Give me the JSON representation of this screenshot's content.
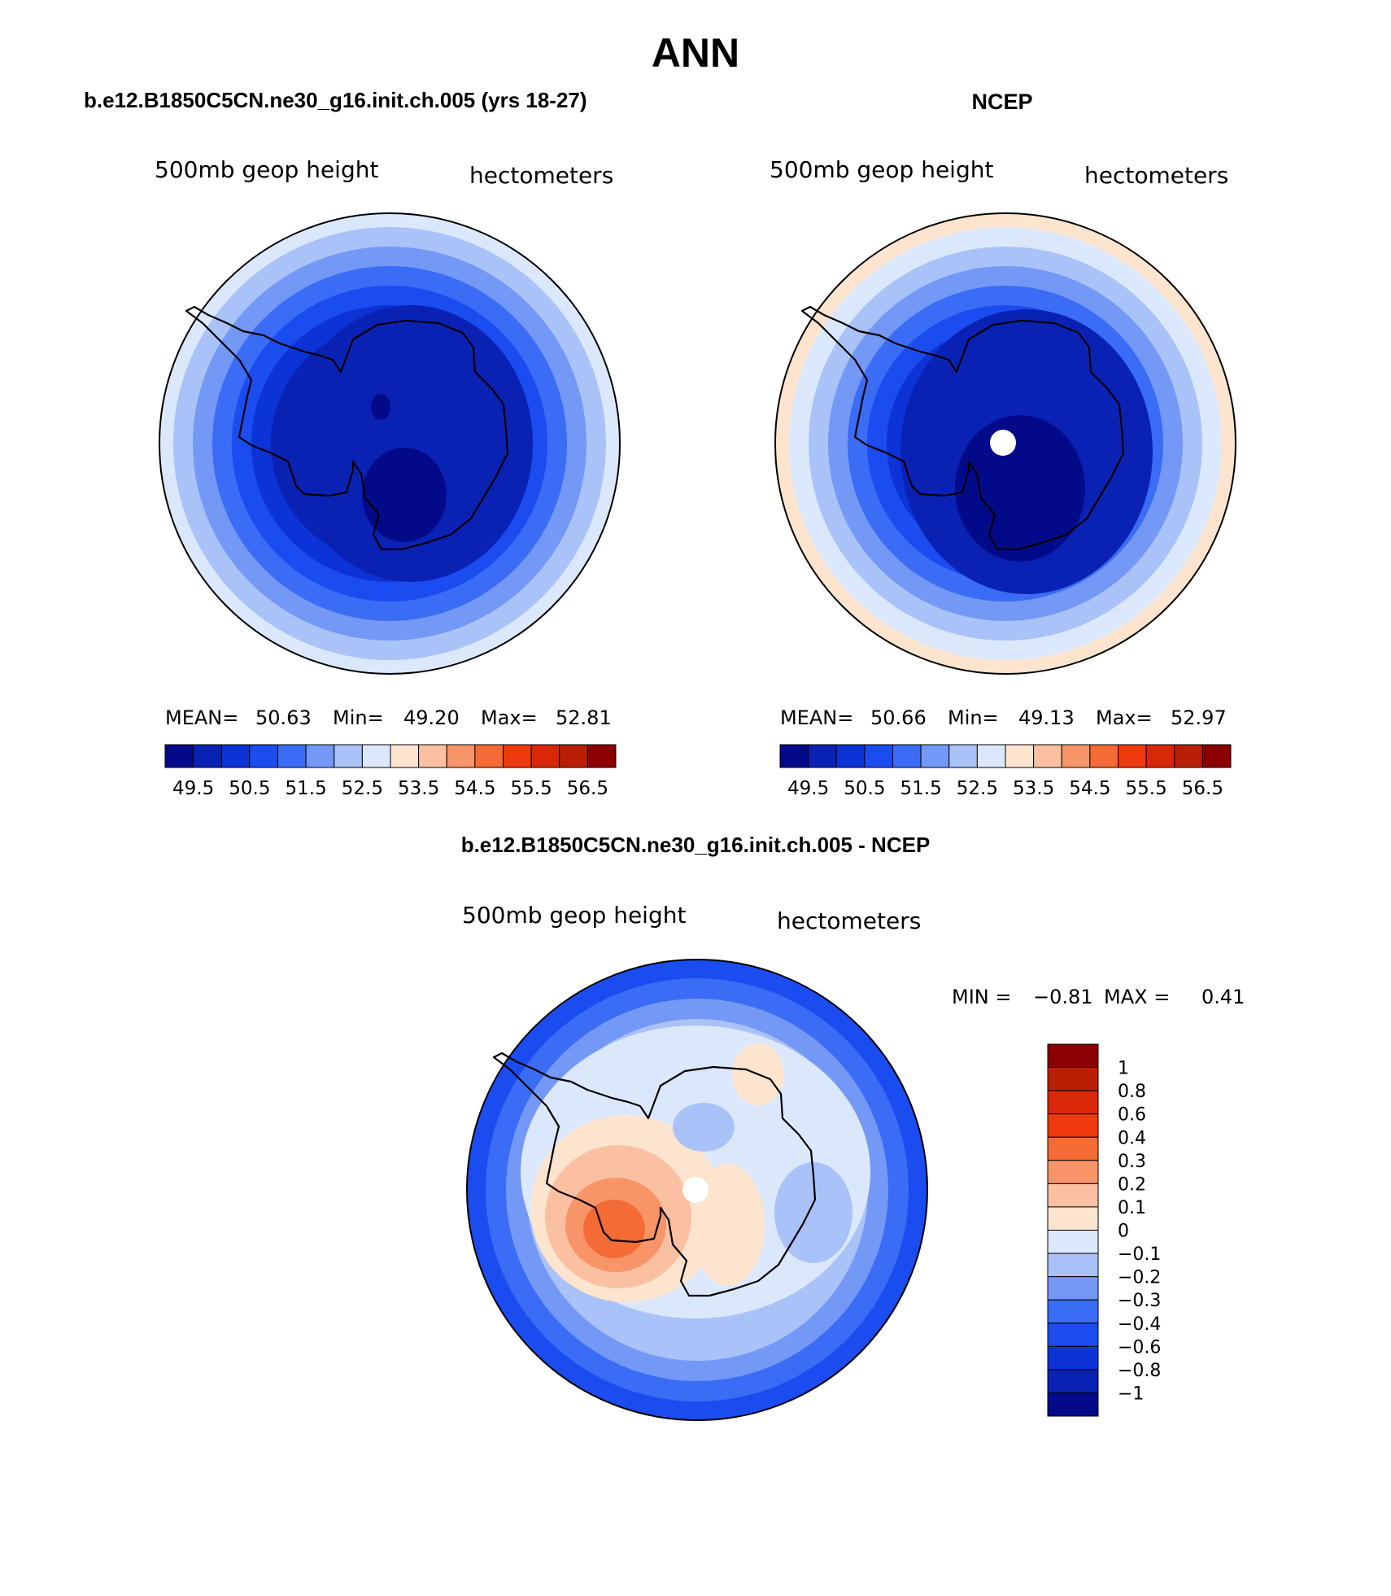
{
  "title": "ANN",
  "panels": [
    {
      "id": "model",
      "header": "b.e12.B1850C5CN.ne30_g16.init.ch.005 (yrs 18-27)",
      "left_label": "500mb geop height",
      "right_label": "hectometers",
      "stats": {
        "mean_label": "MEAN=",
        "mean": "50.63",
        "min_label": "Min=",
        "min": "49.20",
        "max_label": "Max=",
        "max": "52.81"
      },
      "colorbar_ticks": [
        "49.5",
        "50.5",
        "51.5",
        "52.5",
        "53.5",
        "54.5",
        "55.5",
        "56.5"
      ],
      "colorbar_colors": [
        "#030a8a",
        "#0a22b4",
        "#0c33d6",
        "#1a4cf0",
        "#3a6cf5",
        "#7398f6",
        "#a9c2f8",
        "#dbe8fc",
        "#fde4ce",
        "#fbc0a2",
        "#f79569",
        "#f46b35",
        "#ee3a0d",
        "#d92808",
        "#b81f05",
        "#8b0000"
      ],
      "map_levels": [
        "#030a8a",
        "#0a22b4",
        "#0c33d6",
        "#1a4cf0",
        "#3a6cf5",
        "#7398f6",
        "#a9c2f8",
        "#dbe8fc"
      ]
    },
    {
      "id": "obs",
      "header": "NCEP",
      "left_label": "500mb geop height",
      "right_label": "hectometers",
      "stats": {
        "mean_label": "MEAN=",
        "mean": "50.66",
        "min_label": "Min=",
        "min": "49.13",
        "max_label": "Max=",
        "max": "52.97"
      },
      "colorbar_ticks": [
        "49.5",
        "50.5",
        "51.5",
        "52.5",
        "53.5",
        "54.5",
        "55.5",
        "56.5"
      ],
      "colorbar_colors": [
        "#030a8a",
        "#0a22b4",
        "#0c33d6",
        "#1a4cf0",
        "#3a6cf5",
        "#7398f6",
        "#a9c2f8",
        "#dbe8fc",
        "#fde4ce",
        "#fbc0a2",
        "#f79569",
        "#f46b35",
        "#ee3a0d",
        "#d92808",
        "#b81f05",
        "#8b0000"
      ],
      "map_levels": [
        "#030a8a",
        "#0a22b4",
        "#0c33d6",
        "#1a4cf0",
        "#3a6cf5",
        "#7398f6",
        "#a9c2f8",
        "#dbe8fc",
        "#fde4ce"
      ]
    },
    {
      "id": "diff",
      "header": "b.e12.B1850C5CN.ne30_g16.init.ch.005 - NCEP",
      "left_label": "500mb geop height",
      "right_label": "hectometers",
      "stats": {
        "min_label": "MIN =",
        "min": "−0.81",
        "max_label": "MAX =",
        "max": "0.41"
      },
      "colorbar_ticks": [
        "1",
        "0.8",
        "0.6",
        "0.4",
        "0.3",
        "0.2",
        "0.1",
        "0",
        "−0.1",
        "−0.2",
        "−0.3",
        "−0.4",
        "−0.6",
        "−0.8",
        "−1"
      ],
      "colorbar_colors": [
        "#8b0000",
        "#b81f05",
        "#d92808",
        "#ee3a0d",
        "#f46b35",
        "#f79569",
        "#fbc0a2",
        "#fde4ce",
        "#dbe8fc",
        "#a9c2f8",
        "#7398f6",
        "#3a6cf5",
        "#1a4cf0",
        "#0c33d6",
        "#0a22b4",
        "#030a8a"
      ]
    }
  ]
}
